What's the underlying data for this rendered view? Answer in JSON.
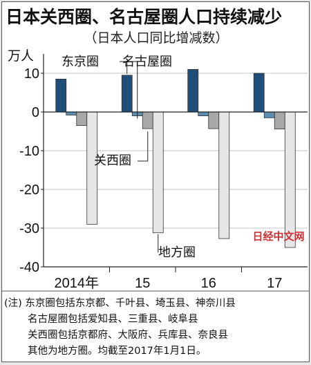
{
  "chart_data": {
    "type": "bar",
    "title": "日本关西圈、名古屋圈人口持续减少",
    "subtitle": "（日本人口同比增减数）",
    "y_unit": "万人",
    "ylim": [
      -40,
      15
    ],
    "yticks": [
      10,
      0,
      -10,
      -20,
      -30,
      -40
    ],
    "categories": [
      "2014年",
      "15",
      "16",
      "17"
    ],
    "series": [
      {
        "name": "东京圈",
        "color": "#1f4e79",
        "values": [
          8.5,
          9.5,
          11,
          10
        ]
      },
      {
        "name": "名古屋圈",
        "color": "#5f8fb0",
        "values": [
          -0.8,
          -1.0,
          -1.0,
          -1.5
        ]
      },
      {
        "name": "关西圈",
        "color": "#a8a8a8",
        "values": [
          -3.5,
          -4.3,
          -4.3,
          -4.4
        ]
      },
      {
        "name": "地方圈",
        "color": "#e6e6e9",
        "values": [
          -29,
          -31.2,
          -32.7,
          -35
        ]
      }
    ]
  },
  "watermark": "日经中文网",
  "notes": [
    "(注) 东京圈包括东京都、千叶县、埼玉县、神奈川县",
    "名古屋圈包括爱知县、三重县、岐阜县",
    "关西圈包括京都府、大阪府、兵库县、奈良县",
    "其他为地方圈。均截至2017年1月1日。"
  ]
}
